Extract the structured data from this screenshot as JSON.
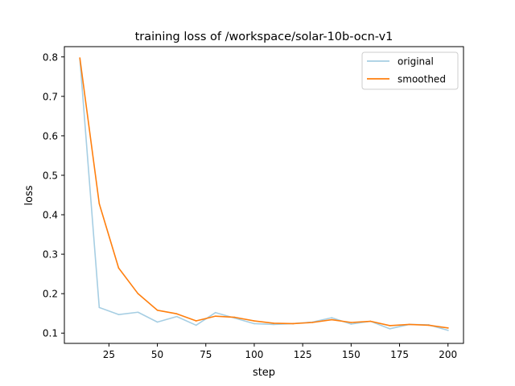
{
  "chart_data": {
    "type": "line",
    "title": "training loss of /workspace/solar-10b-ocn-v1",
    "xlabel": "step",
    "ylabel": "loss",
    "xlim": [
      2,
      208
    ],
    "ylim": [
      0.074,
      0.826
    ],
    "x_ticks": [
      25,
      50,
      75,
      100,
      125,
      150,
      175,
      200
    ],
    "y_ticks": [
      0.1,
      0.2,
      0.3,
      0.4,
      0.5,
      0.6,
      0.7,
      0.8
    ],
    "grid": false,
    "legend_position": "upper right",
    "x": [
      10,
      20,
      30,
      40,
      50,
      60,
      70,
      80,
      90,
      100,
      110,
      120,
      130,
      140,
      150,
      160,
      170,
      180,
      190,
      200
    ],
    "series": [
      {
        "name": "original",
        "color": "#a6cee3",
        "values": [
          0.795,
          0.165,
          0.147,
          0.153,
          0.128,
          0.142,
          0.12,
          0.152,
          0.138,
          0.124,
          0.122,
          0.124,
          0.128,
          0.139,
          0.123,
          0.13,
          0.111,
          0.122,
          0.121,
          0.107
        ]
      },
      {
        "name": "smoothed",
        "color": "#ff7f0e",
        "values": [
          0.797,
          0.428,
          0.265,
          0.2,
          0.158,
          0.149,
          0.131,
          0.143,
          0.14,
          0.131,
          0.125,
          0.124,
          0.127,
          0.134,
          0.127,
          0.13,
          0.119,
          0.122,
          0.12,
          0.113
        ]
      }
    ]
  }
}
